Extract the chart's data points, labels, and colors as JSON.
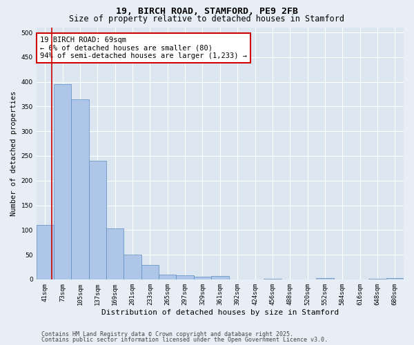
{
  "title": "19, BIRCH ROAD, STAMFORD, PE9 2FB",
  "subtitle": "Size of property relative to detached houses in Stamford",
  "xlabel": "Distribution of detached houses by size in Stamford",
  "ylabel": "Number of detached properties",
  "categories": [
    "41sqm",
    "73sqm",
    "105sqm",
    "137sqm",
    "169sqm",
    "201sqm",
    "233sqm",
    "265sqm",
    "297sqm",
    "329sqm",
    "361sqm",
    "392sqm",
    "424sqm",
    "456sqm",
    "488sqm",
    "520sqm",
    "552sqm",
    "584sqm",
    "616sqm",
    "648sqm",
    "680sqm"
  ],
  "values": [
    110,
    395,
    365,
    240,
    103,
    50,
    29,
    10,
    8,
    5,
    7,
    0,
    0,
    1,
    0,
    0,
    3,
    0,
    0,
    1,
    3
  ],
  "bar_color": "#aec6e8",
  "bar_edge_color": "#5b8dbf",
  "bar_edge_width": 0.5,
  "ylim": [
    0,
    510
  ],
  "yticks": [
    0,
    50,
    100,
    150,
    200,
    250,
    300,
    350,
    400,
    450,
    500
  ],
  "annotation_title": "19 BIRCH ROAD: 69sqm",
  "annotation_line1": "← 6% of detached houses are smaller (80)",
  "annotation_line2": "94% of semi-detached houses are larger (1,233) →",
  "annotation_box_facecolor": "#ffffff",
  "annotation_box_edgecolor": "#cc0000",
  "background_color": "#dce6f0",
  "fig_background_color": "#e8eef5",
  "grid_color": "#ffffff",
  "footer_line1": "Contains HM Land Registry data © Crown copyright and database right 2025.",
  "footer_line2": "Contains public sector information licensed under the Open Government Licence v3.0.",
  "title_fontsize": 9.5,
  "subtitle_fontsize": 8.5,
  "ylabel_fontsize": 7.5,
  "xlabel_fontsize": 8,
  "tick_fontsize": 6.5,
  "annotation_fontsize": 7.5,
  "footer_fontsize": 6
}
